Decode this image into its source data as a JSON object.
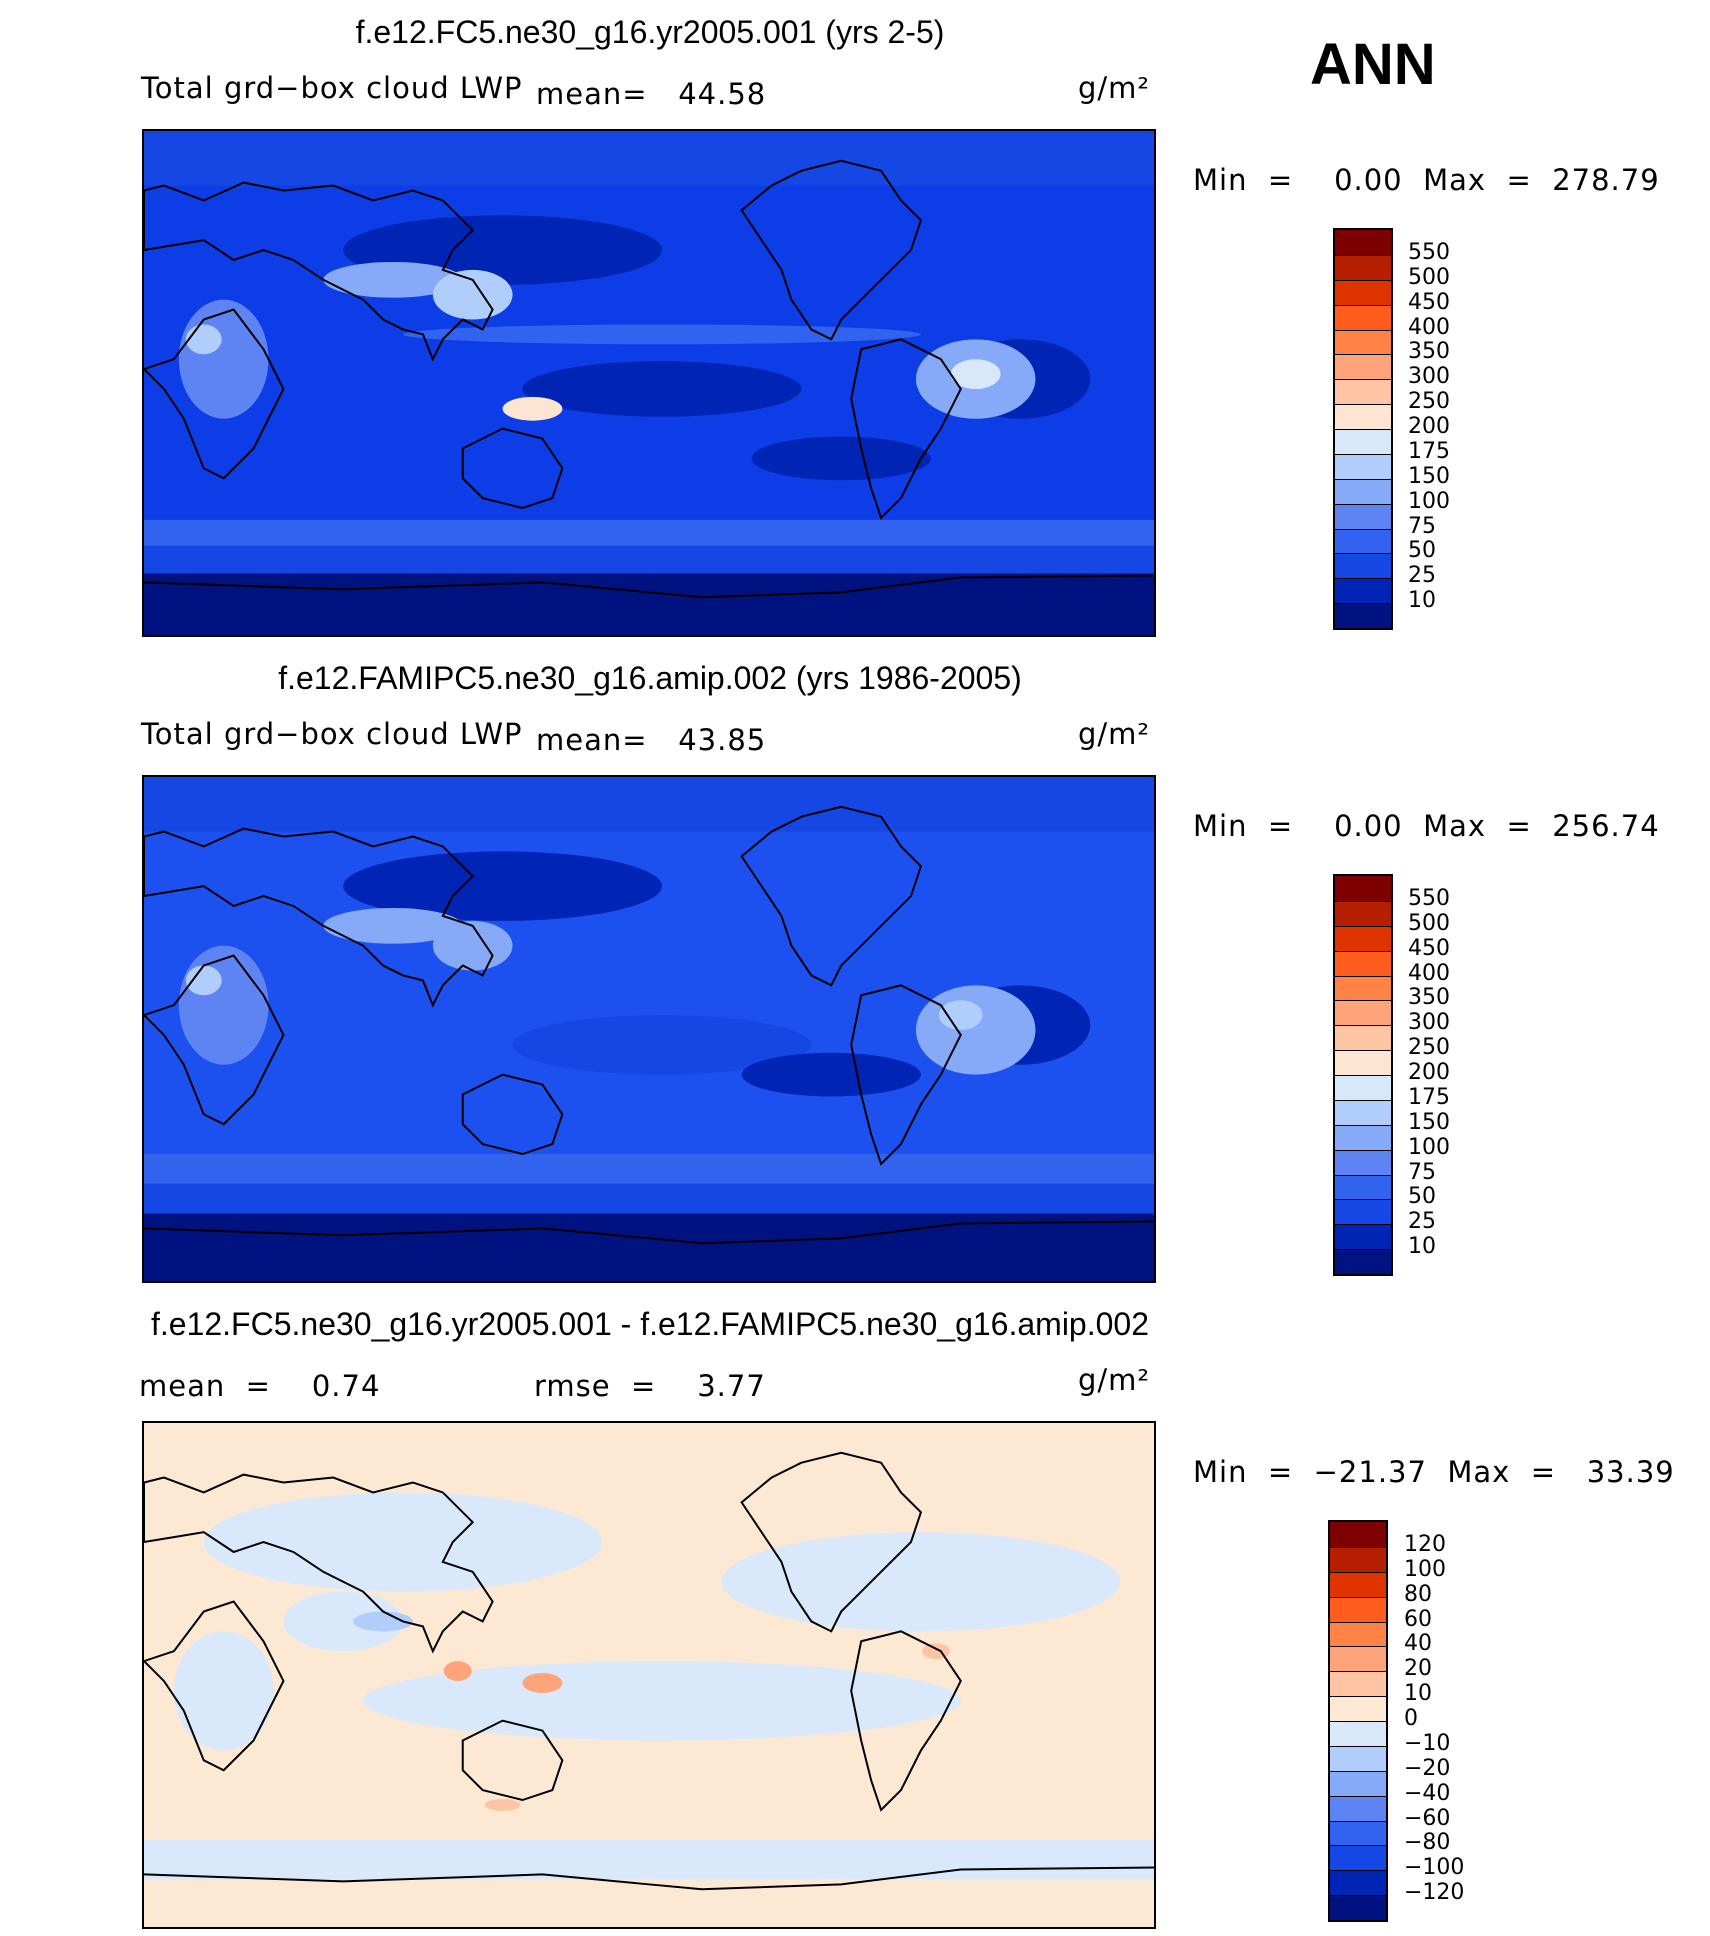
{
  "season": "ANN",
  "unit": "g/m²",
  "panels": [
    {
      "id": "p1",
      "title": "f.e12.FC5.ne30_g16.yr2005.001 (yrs 2-5)",
      "variable": "Total grd−box cloud LWP",
      "mean": "mean=   44.58",
      "minmax": "Min  =    0.00  Max  =  278.79",
      "levels": [
        "550",
        "500",
        "450",
        "400",
        "350",
        "300",
        "250",
        "200",
        "175",
        "150",
        "100",
        "75",
        "50",
        "25",
        "10"
      ]
    },
    {
      "id": "p2",
      "title": "f.e12.FAMIPC5.ne30_g16.amip.002 (yrs 1986-2005)",
      "variable": "Total grd−box cloud LWP",
      "mean": "mean=   43.85",
      "minmax": "Min  =    0.00  Max  =  256.74",
      "levels": [
        "550",
        "500",
        "450",
        "400",
        "350",
        "300",
        "250",
        "200",
        "175",
        "150",
        "100",
        "75",
        "50",
        "25",
        "10"
      ]
    },
    {
      "id": "p3",
      "title": "f.e12.FC5.ne30_g16.yr2005.001 - f.e12.FAMIPC5.ne30_g16.amip.002",
      "mean": "mean  =    0.74",
      "rmse": "rmse  =    3.77",
      "minmax": "Min  =  −21.37  Max  =   33.39",
      "levels": [
        "120",
        "100",
        "80",
        "60",
        "40",
        "20",
        "10",
        "0",
        "−10",
        "−20",
        "−40",
        "−60",
        "−80",
        "−100",
        "−120"
      ]
    }
  ],
  "colors": {
    "abs_scale": [
      "#7f0000",
      "#b51f00",
      "#e03400",
      "#ff5c1e",
      "#ff8247",
      "#ffa37a",
      "#ffc4a3",
      "#fde5d1",
      "#d7e8fb",
      "#b1cdfb",
      "#86a9f8",
      "#5e84f3",
      "#3163ee",
      "#1447e3",
      "#0024b4",
      "#00127f"
    ],
    "diff_scale": [
      "#7f0000",
      "#b51f00",
      "#e03400",
      "#ff5c1e",
      "#ff8247",
      "#ffa37a",
      "#ffc4a3",
      "#fde8d4",
      "#d9e8fb",
      "#b1cdfb",
      "#86a9f8",
      "#5e84f3",
      "#3163ee",
      "#1447e3",
      "#0024b4",
      "#00127f"
    ],
    "ocean_main": "#0d3de6",
    "ocean_mid": "#1c51ef",
    "polar": "#00127f",
    "diff_base_warm": "#fde8d4",
    "diff_base_cool": "#d9e8fb"
  }
}
